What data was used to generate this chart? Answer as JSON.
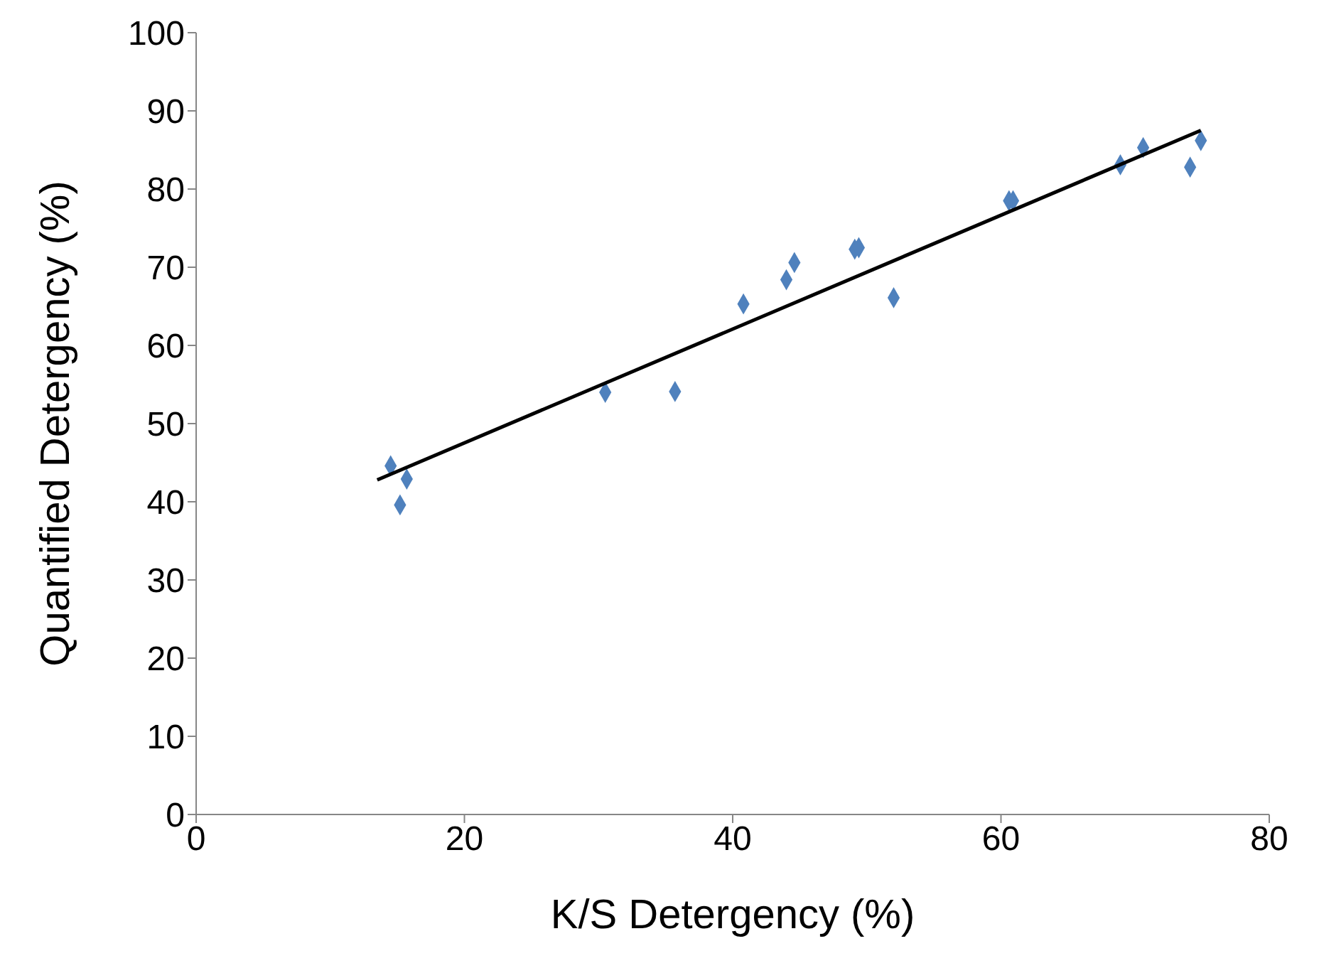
{
  "chart_data": {
    "type": "scatter",
    "xlabel": "K/S Detergency (%)",
    "ylabel": "Quantified Detergency (%)",
    "xlim": [
      0,
      80
    ],
    "xticks": [
      0,
      20,
      40,
      60,
      80
    ],
    "ylim": [
      0,
      100
    ],
    "yticks": [
      0,
      10,
      20,
      30,
      40,
      50,
      60,
      70,
      80,
      90,
      100
    ],
    "grid": false,
    "marker": "diamond",
    "series": [
      {
        "color": "#4f81bd",
        "x": [
          14.5,
          15.7,
          15.2,
          30.5,
          35.7,
          40.8,
          44.0,
          44.6,
          49.1,
          49.4,
          52.0,
          60.6,
          60.9,
          68.9,
          70.6,
          74.1,
          74.9
        ],
        "values": [
          44.6,
          42.9,
          39.6,
          54.0,
          54.1,
          65.3,
          68.4,
          70.6,
          72.3,
          72.5,
          66.1,
          78.5,
          78.5,
          83.1,
          85.3,
          82.8,
          86.2
        ]
      },
      {
        "type": "line",
        "color": "#000000",
        "marker": "none",
        "line_style": "solid",
        "x": [
          13.5,
          74.9
        ],
        "values": [
          42.8,
          87.5
        ]
      }
    ]
  }
}
